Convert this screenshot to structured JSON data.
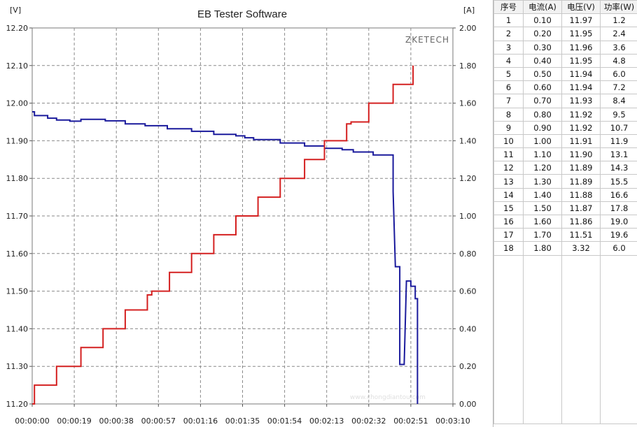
{
  "chart_data": {
    "type": "line",
    "title": "EB Tester Software",
    "watermark_brand": "ZKETECH",
    "left_axis": {
      "unit": "[V]",
      "ylim": [
        11.2,
        12.2
      ],
      "ticks": [
        "11.20",
        "11.30",
        "11.40",
        "11.50",
        "11.60",
        "11.70",
        "11.80",
        "11.90",
        "12.00",
        "12.10",
        "12.20"
      ]
    },
    "right_axis": {
      "unit": "[A]",
      "ylim": [
        0.0,
        2.0
      ],
      "ticks": [
        "0.00",
        "0.20",
        "0.40",
        "0.60",
        "0.80",
        "1.00",
        "1.20",
        "1.40",
        "1.60",
        "1.80",
        "2.00"
      ]
    },
    "x_axis": {
      "unit": "seconds",
      "xlim": [
        0,
        190
      ],
      "ticks": [
        "00:00:00",
        "00:00:19",
        "00:00:38",
        "00:00:57",
        "00:01:16",
        "00:01:35",
        "00:01:54",
        "00:02:13",
        "00:02:32",
        "00:02:51",
        "00:03:10"
      ]
    },
    "grid": true,
    "series": [
      {
        "axis": "left",
        "color": "#1a1a9c",
        "points": [
          [
            0,
            11.977
          ],
          [
            1,
            11.977
          ],
          [
            1,
            11.967
          ],
          [
            7,
            11.967
          ],
          [
            7,
            11.96
          ],
          [
            11,
            11.96
          ],
          [
            11,
            11.955
          ],
          [
            17,
            11.955
          ],
          [
            17,
            11.952
          ],
          [
            22,
            11.952
          ],
          [
            22,
            11.957
          ],
          [
            33,
            11.957
          ],
          [
            33,
            11.953
          ],
          [
            42,
            11.953
          ],
          [
            42,
            11.945
          ],
          [
            51,
            11.945
          ],
          [
            51,
            11.94
          ],
          [
            61,
            11.94
          ],
          [
            61,
            11.932
          ],
          [
            72,
            11.932
          ],
          [
            72,
            11.925
          ],
          [
            82,
            11.925
          ],
          [
            82,
            11.917
          ],
          [
            92,
            11.917
          ],
          [
            92,
            11.913
          ],
          [
            96,
            11.913
          ],
          [
            96,
            11.908
          ],
          [
            100,
            11.908
          ],
          [
            100,
            11.903
          ],
          [
            112,
            11.903
          ],
          [
            112,
            11.894
          ],
          [
            123,
            11.894
          ],
          [
            123,
            11.886
          ],
          [
            132,
            11.886
          ],
          [
            132,
            11.88
          ],
          [
            140,
            11.88
          ],
          [
            140,
            11.876
          ],
          [
            145,
            11.876
          ],
          [
            145,
            11.87
          ],
          [
            154,
            11.87
          ],
          [
            154,
            11.862
          ],
          [
            163,
            11.862
          ],
          [
            163,
            11.765
          ],
          [
            164,
            11.565
          ],
          [
            166,
            11.565
          ],
          [
            166,
            11.305
          ],
          [
            168,
            11.305
          ],
          [
            169,
            11.527
          ],
          [
            171,
            11.527
          ],
          [
            171,
            11.513
          ],
          [
            173,
            11.513
          ],
          [
            173,
            11.48
          ],
          [
            174,
            11.48
          ],
          [
            174,
            11.2
          ]
        ]
      },
      {
        "axis": "right",
        "color": "#d42020",
        "points": [
          [
            0,
            0.0
          ],
          [
            1,
            0.0
          ],
          [
            1,
            0.1
          ],
          [
            11,
            0.1
          ],
          [
            11,
            0.2
          ],
          [
            22,
            0.2
          ],
          [
            22,
            0.3
          ],
          [
            32,
            0.3
          ],
          [
            32,
            0.4
          ],
          [
            42,
            0.4
          ],
          [
            42,
            0.5
          ],
          [
            52,
            0.5
          ],
          [
            52,
            0.58
          ],
          [
            54,
            0.58
          ],
          [
            54,
            0.6
          ],
          [
            62,
            0.6
          ],
          [
            62,
            0.7
          ],
          [
            72,
            0.7
          ],
          [
            72,
            0.8
          ],
          [
            82,
            0.8
          ],
          [
            82,
            0.9
          ],
          [
            92,
            0.9
          ],
          [
            92,
            1.0
          ],
          [
            102,
            1.0
          ],
          [
            102,
            1.1
          ],
          [
            112,
            1.1
          ],
          [
            112,
            1.2
          ],
          [
            123,
            1.2
          ],
          [
            123,
            1.3
          ],
          [
            132,
            1.3
          ],
          [
            132,
            1.4
          ],
          [
            142,
            1.4
          ],
          [
            142,
            1.49
          ],
          [
            144,
            1.49
          ],
          [
            144,
            1.5
          ],
          [
            152,
            1.5
          ],
          [
            152,
            1.6
          ],
          [
            163,
            1.6
          ],
          [
            163,
            1.7
          ],
          [
            172,
            1.7
          ],
          [
            172,
            1.8
          ]
        ]
      }
    ],
    "table": {
      "headers": [
        "序号",
        "电流(A)",
        "电压(V)",
        "功率(W)"
      ],
      "rows": [
        [
          "1",
          "0.10",
          "11.97",
          "1.2"
        ],
        [
          "2",
          "0.20",
          "11.95",
          "2.4"
        ],
        [
          "3",
          "0.30",
          "11.96",
          "3.6"
        ],
        [
          "4",
          "0.40",
          "11.95",
          "4.8"
        ],
        [
          "5",
          "0.50",
          "11.94",
          "6.0"
        ],
        [
          "6",
          "0.60",
          "11.94",
          "7.2"
        ],
        [
          "7",
          "0.70",
          "11.93",
          "8.4"
        ],
        [
          "8",
          "0.80",
          "11.92",
          "9.5"
        ],
        [
          "9",
          "0.90",
          "11.92",
          "10.7"
        ],
        [
          "10",
          "1.00",
          "11.91",
          "11.9"
        ],
        [
          "11",
          "1.10",
          "11.90",
          "13.1"
        ],
        [
          "12",
          "1.20",
          "11.89",
          "14.3"
        ],
        [
          "13",
          "1.30",
          "11.89",
          "15.5"
        ],
        [
          "14",
          "1.40",
          "11.88",
          "16.6"
        ],
        [
          "15",
          "1.50",
          "11.87",
          "17.8"
        ],
        [
          "16",
          "1.60",
          "11.86",
          "19.0"
        ],
        [
          "17",
          "1.70",
          "11.51",
          "19.6"
        ],
        [
          "18",
          "1.80",
          "3.32",
          "6.0"
        ]
      ]
    }
  },
  "watermark": {
    "site": "www.chongdiantou.com"
  }
}
